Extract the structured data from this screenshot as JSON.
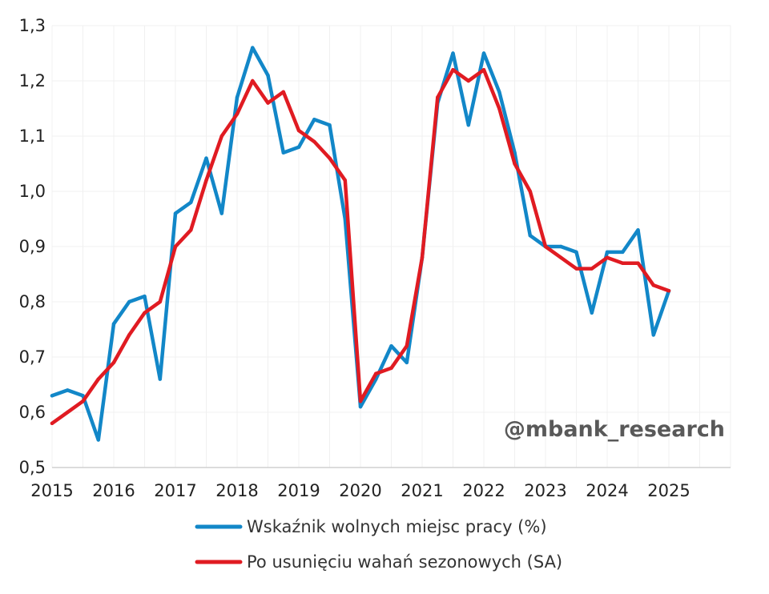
{
  "watermark": "@mbank_research",
  "colors": {
    "series1": "#1287c8",
    "series2": "#e01b22",
    "grid": "#f0f0f0",
    "axis": "#d0d0d0",
    "text": "#222222"
  },
  "chart_data": {
    "type": "line",
    "title": "",
    "xlabel": "",
    "ylabel": "",
    "ylim": [
      0.5,
      1.3
    ],
    "xlim": [
      2015,
      2026
    ],
    "grid": true,
    "legend_position": "bottom",
    "x_ticks": [
      "2015",
      "2016",
      "2017",
      "2018",
      "2019",
      "2020",
      "2021",
      "2022",
      "2023",
      "2024",
      "2025"
    ],
    "y_ticks": [
      "0,5",
      "0,6",
      "0,7",
      "0,8",
      "0,9",
      "1,0",
      "1,1",
      "1,2",
      "1,3"
    ],
    "x": [
      2015.0,
      2015.25,
      2015.5,
      2015.75,
      2016.0,
      2016.25,
      2016.5,
      2016.75,
      2017.0,
      2017.25,
      2017.5,
      2017.75,
      2018.0,
      2018.25,
      2018.5,
      2018.75,
      2019.0,
      2019.25,
      2019.5,
      2019.75,
      2020.0,
      2020.25,
      2020.5,
      2020.75,
      2021.0,
      2021.25,
      2021.5,
      2021.75,
      2022.0,
      2022.25,
      2022.5,
      2022.75,
      2023.0,
      2023.25,
      2023.5,
      2023.75,
      2024.0,
      2024.25,
      2024.5,
      2024.75,
      2025.0
    ],
    "series": [
      {
        "name": "Wskaźnik wolnych miejsc pracy (%)",
        "color": "#1287c8",
        "values": [
          0.63,
          0.64,
          0.63,
          0.55,
          0.76,
          0.8,
          0.81,
          0.66,
          0.96,
          0.98,
          1.06,
          0.96,
          1.17,
          1.26,
          1.21,
          1.07,
          1.08,
          1.13,
          1.12,
          0.95,
          0.61,
          0.66,
          0.72,
          0.69,
          0.88,
          1.16,
          1.25,
          1.12,
          1.25,
          1.18,
          1.07,
          0.92,
          0.9,
          0.9,
          0.89,
          0.78,
          0.89,
          0.89,
          0.93,
          0.74,
          0.82
        ]
      },
      {
        "name": "Po usunięciu wahań sezonowych (SA)",
        "color": "#e01b22",
        "values": [
          0.58,
          0.6,
          0.62,
          0.66,
          0.69,
          0.74,
          0.78,
          0.8,
          0.9,
          0.93,
          1.02,
          1.1,
          1.14,
          1.2,
          1.16,
          1.18,
          1.11,
          1.09,
          1.06,
          1.02,
          0.62,
          0.67,
          0.68,
          0.72,
          0.88,
          1.17,
          1.22,
          1.2,
          1.22,
          1.15,
          1.05,
          1.0,
          0.9,
          0.88,
          0.86,
          0.86,
          0.88,
          0.87,
          0.87,
          0.83,
          0.82
        ]
      }
    ]
  }
}
